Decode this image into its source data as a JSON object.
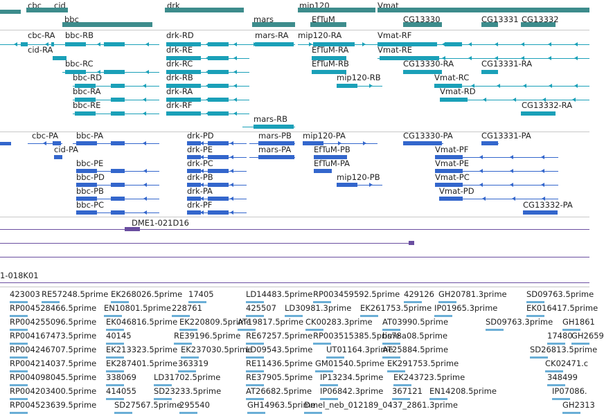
{
  "colors": {
    "gene": "#3d8c8c",
    "transcript_rna": "#1aa0b8",
    "transcript_protein": "#3366cc",
    "clone": "#6a4ea0",
    "est": "#6aaed6"
  },
  "genes": [
    "cbc",
    "cid",
    "bbc",
    "drk",
    "mars",
    "mip120",
    "Vmat",
    "EfTuM",
    "CG13330",
    "CG13331",
    "CG13332"
  ],
  "rna_transcripts": [
    "cbc-RA",
    "bbc-RB",
    "drk-RD",
    "mars-RA",
    "mip120-RA",
    "Vmat-RF",
    "cid-RA",
    "drk-RE",
    "EfTuM-RA",
    "Vmat-RE",
    "bbc-RC",
    "drk-RC",
    "EfTuM-RB",
    "CG13330-RA",
    "CG13331-RA",
    "bbc-RD",
    "drk-RB",
    "mip120-RB",
    "Vmat-RC",
    "bbc-RA",
    "drk-RA",
    "Vmat-RD",
    "bbc-RE",
    "drk-RF",
    "CG13332-RA",
    "mars-RB"
  ],
  "protein_transcripts": [
    "cbc-PA",
    "bbc-PA",
    "drk-PD",
    "mars-PB",
    "mip120-PA",
    "CG13330-PA",
    "CG13331-PA",
    "cid-PA",
    "drk-PE",
    "mars-PA",
    "EfTuM-PB",
    "Vmat-PF",
    "bbc-PE",
    "drk-PC",
    "EfTuM-PA",
    "Vmat-PE",
    "bbc-PD",
    "drk-PB",
    "mip120-PB",
    "Vmat-PC",
    "bbc-PB",
    "drk-PA",
    "Vmat-PD",
    "bbc-PC",
    "drk-PF",
    "CG13332-PA"
  ],
  "clones": [
    "DME1-021D16",
    "1-018K01"
  ],
  "ests": [
    "423003",
    "RE57248.5prime",
    "EK268026.5prime",
    "17405",
    "LD14483.5prime",
    "RP003459592.5prime",
    "429126",
    "GH20781.3prime",
    "SD09763.5prime",
    "RP004528466.5prime",
    "EN10801.5prime",
    "228761",
    "425507",
    "LD30981.3prime",
    "EK261753.5prime",
    "IP01965.3prime",
    "EK016417.5prime",
    "RP004255096.5prime",
    "EK046816.5prime",
    "EK220809.5prime",
    "AT19817.5prime",
    "CK00283.3prime",
    "AT03990.5prime",
    "SD09763.3prime",
    "GH1861",
    "RP004167473.5prime",
    "40145",
    "RE39196.5prime",
    "RE67257.5prime",
    "RP003515385.5prime",
    "bs78a08.5prime",
    "17480",
    "GH2659",
    "RP004246707.5prime",
    "EK213323.5prime",
    "EK237030.5prime",
    "LD09543.5prime",
    "UT01164.3prime",
    "AT25884.5prime",
    "SD26813.5prime",
    "RP004214037.5prime",
    "EK287401.5prime",
    "363319",
    "RE11436.5prime",
    "GM01540.5prime",
    "EK291753.5prime",
    "CK02471.c",
    "RP004098045.5prime",
    "338069",
    "LD31702.5prime",
    "RE37905.5prime",
    "IP13234.5prime",
    "EK243723.5prime",
    "348499",
    "RP004203400.5prime",
    "414055",
    "SD23233.5prime",
    "AT26682.5prime",
    "IP06842.3prime",
    "367121",
    "EN14208.5prime",
    "IP07086.",
    "RP004523639.5prime",
    "SD27567.5prime",
    "295540",
    "GH14963.5prime",
    "Dmel_neb_012189_0437_2861.3prime",
    "GH2313"
  ]
}
